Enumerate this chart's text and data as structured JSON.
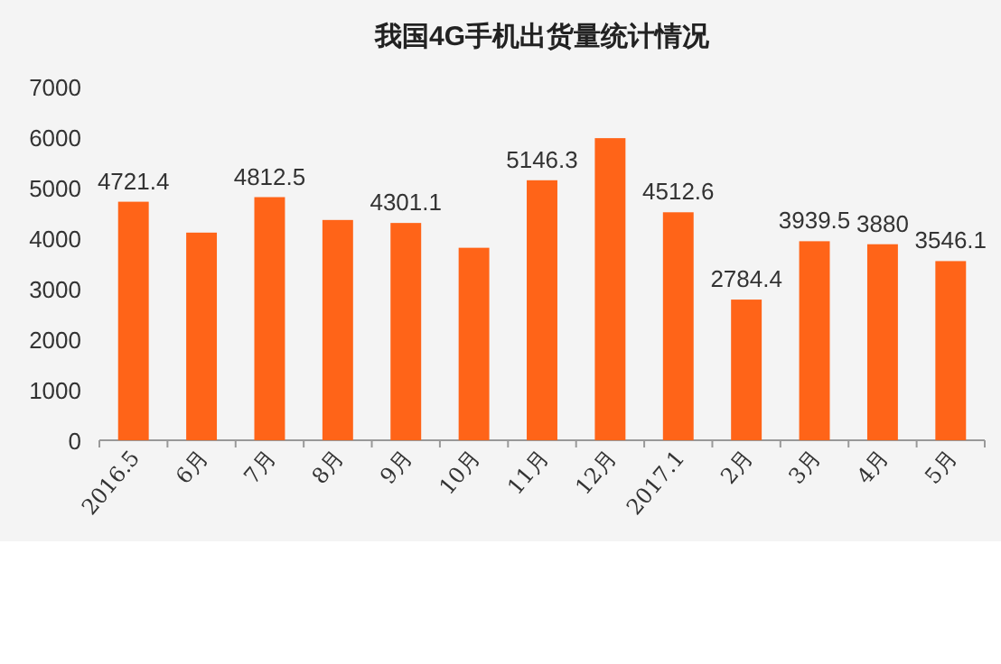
{
  "chart_data": {
    "type": "bar",
    "title": "我国4G手机出货量统计情况",
    "categories": [
      "2016.5",
      "6月",
      "7月",
      "8月",
      "9月",
      "10月",
      "11月",
      "12月",
      "2017.1",
      "2月",
      "3月",
      "4月",
      "5月"
    ],
    "values": [
      4721.4,
      4110,
      4812.5,
      4360,
      4301.1,
      3810,
      5146.3,
      5980,
      4512.6,
      2784.4,
      3939.5,
      3880,
      3546.1
    ],
    "value_labels": [
      "4721.4",
      null,
      "4812.5",
      null,
      "4301.1",
      null,
      "5146.3",
      null,
      "4512.6",
      "2784.4",
      "3939.5",
      "3880",
      "3546.1"
    ],
    "color": "#ff6418",
    "ylim": [
      0,
      7000
    ],
    "yticks": [
      0,
      1000,
      2000,
      3000,
      4000,
      5000,
      6000,
      7000
    ]
  }
}
